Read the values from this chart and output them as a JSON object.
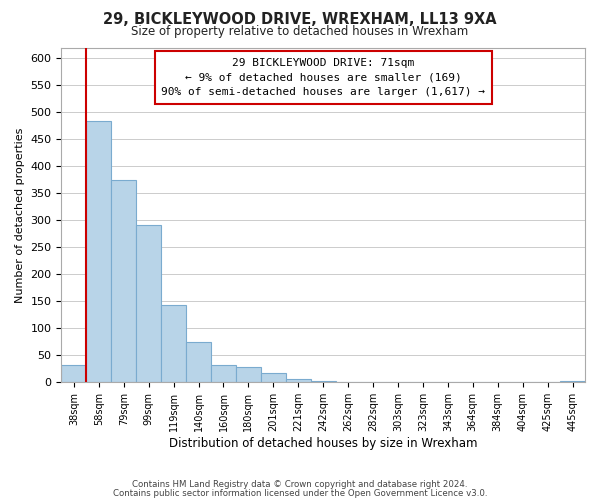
{
  "title": "29, BICKLEYWOOD DRIVE, WREXHAM, LL13 9XA",
  "subtitle": "Size of property relative to detached houses in Wrexham",
  "bar_values": [
    32,
    483,
    375,
    291,
    144,
    75,
    32,
    29,
    17,
    7,
    2,
    1,
    1,
    0,
    0,
    0,
    0,
    0,
    0,
    0,
    3
  ],
  "bar_labels": [
    "38sqm",
    "58sqm",
    "79sqm",
    "99sqm",
    "119sqm",
    "140sqm",
    "160sqm",
    "180sqm",
    "201sqm",
    "221sqm",
    "242sqm",
    "262sqm",
    "282sqm",
    "303sqm",
    "323sqm",
    "343sqm",
    "364sqm",
    "384sqm",
    "404sqm",
    "425sqm",
    "445sqm"
  ],
  "bar_color": "#b8d4e8",
  "bar_edge_color": "#7aabcf",
  "marker_color": "#cc0000",
  "ylabel": "Number of detached properties",
  "xlabel": "Distribution of detached houses by size in Wrexham",
  "ylim": [
    0,
    620
  ],
  "yticks": [
    0,
    50,
    100,
    150,
    200,
    250,
    300,
    350,
    400,
    450,
    500,
    550,
    600
  ],
  "annotation_title": "29 BICKLEYWOOD DRIVE: 71sqm",
  "annotation_line1": "← 9% of detached houses are smaller (169)",
  "annotation_line2": "90% of semi-detached houses are larger (1,617) →",
  "footer1": "Contains HM Land Registry data © Crown copyright and database right 2024.",
  "footer2": "Contains public sector information licensed under the Open Government Licence v3.0.",
  "grid_color": "#cccccc",
  "background_color": "#ffffff",
  "red_line_bin": 0.5
}
